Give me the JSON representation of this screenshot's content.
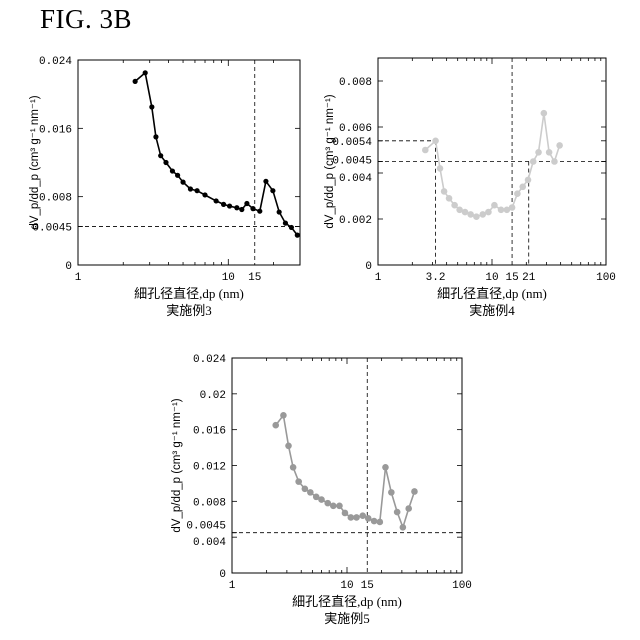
{
  "figure_title": "FIG. 3B",
  "chart_data": [
    {
      "type": "line",
      "panel": "ex3",
      "xscale": "log",
      "xlim": [
        1,
        30
      ],
      "ylim": [
        0,
        0.024
      ],
      "xticks": [
        1,
        10,
        15
      ],
      "yticks": [
        0,
        0.0045,
        0.008,
        0.016,
        0.024
      ],
      "ytick_labels": [
        "0",
        "0.0045",
        "0.008",
        "0.016",
        "0.024"
      ],
      "ref_x": [
        15
      ],
      "ref_y": [
        0.0045
      ],
      "ref_x_from_top": true,
      "ylabel": "dV_p/dd_p (cm³ g⁻¹ nm⁻¹)",
      "xlabel": "細孔径直径,dp (nm)",
      "caption": "実施例3",
      "color": "#000000",
      "series": [
        {
          "x": [
            2.4,
            2.8,
            3.1,
            3.3,
            3.55,
            3.85,
            4.25,
            4.6,
            5.0,
            5.6,
            6.2,
            7.0,
            8.3,
            9.3,
            10.2,
            11.4,
            12.3,
            13.3,
            14.6,
            16.2,
            17.8,
            19.8,
            21.8,
            24.0,
            26.3,
            28.8
          ],
          "y": [
            0.0215,
            0.0225,
            0.0185,
            0.015,
            0.0128,
            0.012,
            0.011,
            0.0105,
            0.0097,
            0.0089,
            0.0087,
            0.0082,
            0.0075,
            0.0071,
            0.0069,
            0.0067,
            0.0065,
            0.0072,
            0.0066,
            0.0063,
            0.0098,
            0.0087,
            0.0062,
            0.0049,
            0.0044,
            0.0035
          ]
        }
      ]
    },
    {
      "type": "line",
      "panel": "ex4",
      "xscale": "log",
      "xlim": [
        1,
        100
      ],
      "ylim": [
        0,
        0.009
      ],
      "xticks": [
        1,
        3.2,
        10,
        15,
        21,
        100
      ],
      "yticks": [
        0,
        0.002,
        0.004,
        0.0045,
        0.0054,
        0.006,
        0.008
      ],
      "ytick_labels": [
        "0",
        "0.002",
        "0.004",
        "0.0045",
        "0.0054",
        "0.006",
        "0.008"
      ],
      "ref_x": [
        3.2,
        15,
        21
      ],
      "ref_y": [
        0.0045,
        0.0054
      ],
      "ref_x_from_top": false,
      "ylabel": "dV_p/dd_p (cm³ g⁻¹ nm⁻¹)",
      "xlabel": "細孔径直径,dp (nm)",
      "caption": "実施例4",
      "color": "#cccccc",
      "series": [
        {
          "x": [
            2.6,
            3.2,
            3.5,
            3.8,
            4.2,
            4.7,
            5.2,
            5.8,
            6.5,
            7.3,
            8.3,
            9.3,
            10.5,
            12.0,
            13.5,
            15.0,
            16.7,
            18.6,
            20.7,
            23.0,
            25.6,
            28.5,
            31.7,
            35.3,
            39.2
          ],
          "y": [
            0.005,
            0.0054,
            0.0042,
            0.0032,
            0.0029,
            0.0026,
            0.0024,
            0.0023,
            0.0022,
            0.0021,
            0.0022,
            0.0023,
            0.0026,
            0.0024,
            0.0024,
            0.0025,
            0.0031,
            0.0034,
            0.0037,
            0.0045,
            0.0049,
            0.0066,
            0.0049,
            0.0045,
            0.0052
          ]
        }
      ]
    },
    {
      "type": "line",
      "panel": "ex5",
      "xscale": "log",
      "xlim": [
        1,
        100
      ],
      "ylim": [
        0,
        0.024
      ],
      "xticks": [
        1,
        10,
        15,
        100
      ],
      "yticks": [
        0,
        0.004,
        0.0045,
        0.008,
        0.012,
        0.016,
        0.02,
        0.024
      ],
      "ytick_labels": [
        "0",
        "0.004",
        "0.0045",
        "0.008",
        "0.012",
        "0.016",
        "0.02",
        "0.024"
      ],
      "ref_x": [
        15
      ],
      "ref_y": [
        0.0045
      ],
      "ref_x_from_top": true,
      "ylabel": "dV_p/dd_p (cm³ g⁻¹ nm⁻¹)",
      "xlabel": "細孔径直径,dp (nm)",
      "caption": "実施例5",
      "color": "#999999",
      "series": [
        {
          "x": [
            2.4,
            2.8,
            3.1,
            3.4,
            3.8,
            4.3,
            4.8,
            5.4,
            6.0,
            6.8,
            7.6,
            8.6,
            9.6,
            10.8,
            12.1,
            13.7,
            15.3,
            17.2,
            19.3,
            21.6,
            24.3,
            27.3,
            30.6,
            34.4,
            38.6
          ],
          "y": [
            0.0165,
            0.0176,
            0.0142,
            0.0118,
            0.0102,
            0.0094,
            0.009,
            0.0085,
            0.0082,
            0.0078,
            0.0075,
            0.0075,
            0.0067,
            0.0062,
            0.0062,
            0.0064,
            0.0061,
            0.0058,
            0.0057,
            0.0118,
            0.009,
            0.0068,
            0.0051,
            0.0072,
            0.0091
          ]
        }
      ]
    }
  ]
}
